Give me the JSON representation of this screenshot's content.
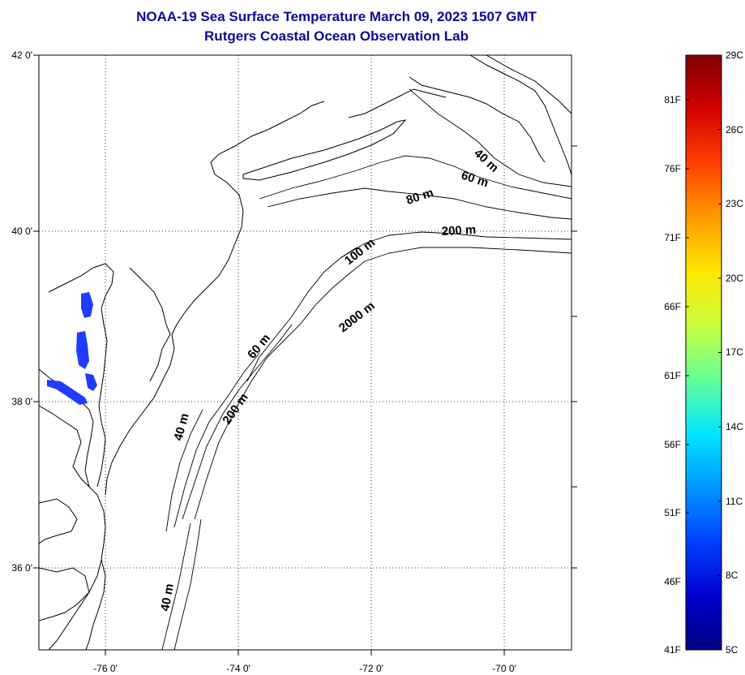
{
  "header": {
    "title": "NOAA-19 Sea Surface Temperature March 09, 2023 1507 GMT",
    "subtitle": "Rutgers Coastal Ocean Observation Lab"
  },
  "map": {
    "lat_labels": [
      "42 0'",
      "40 0'",
      "38 0'",
      "36 0'"
    ],
    "lon_labels": [
      "-76 0'",
      "-74 0'",
      "-72 0'",
      "-70 0'"
    ],
    "contour_labels": [
      "40 m",
      "60 m",
      "80 m",
      "200 m",
      "100 m",
      "2000 m",
      "60 m",
      "200 m",
      "40 m",
      "40 m"
    ],
    "sst_color": "#1f3cff",
    "coast_color": "#000000"
  },
  "colorbar": {
    "celsius_labels": [
      "29C",
      "26C",
      "23C",
      "20C",
      "17C",
      "14C",
      "11C",
      "8C",
      "5C"
    ],
    "fahrenheit_labels": [
      "81F",
      "76F",
      "71F",
      "66F",
      "61F",
      "56F",
      "51F",
      "46F",
      "41F"
    ],
    "colors": [
      "#800000",
      "#d40000",
      "#ff4000",
      "#ff9a00",
      "#ffe600",
      "#c8ff3c",
      "#64ff96",
      "#00e6ff",
      "#0096ff",
      "#0040ff",
      "#0000d0",
      "#000080"
    ]
  }
}
